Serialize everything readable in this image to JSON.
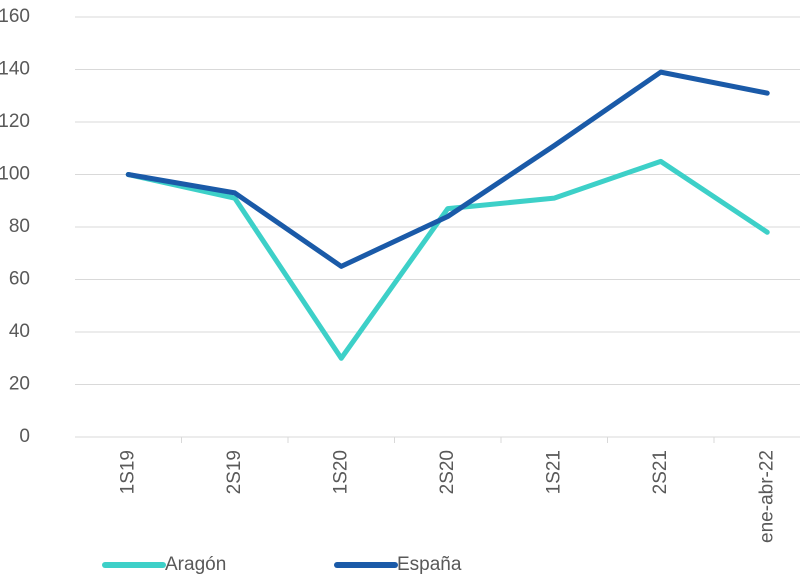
{
  "chart_data": {
    "type": "line",
    "categories": [
      "1S19",
      "2S19",
      "1S20",
      "2S20",
      "1S21",
      "2S21",
      "ene-abr-22"
    ],
    "series": [
      {
        "name": "Aragón",
        "color": "#3dd0c8",
        "values": [
          100,
          91,
          30,
          87,
          91,
          105,
          78
        ]
      },
      {
        "name": "España",
        "color": "#1a5aa8",
        "values": [
          100,
          93,
          65,
          84,
          111,
          139,
          131
        ]
      }
    ],
    "ylim": [
      0,
      160
    ],
    "yticks": [
      0,
      20,
      40,
      60,
      80,
      100,
      120,
      140,
      160
    ],
    "grid": true,
    "legend": "bottom"
  }
}
